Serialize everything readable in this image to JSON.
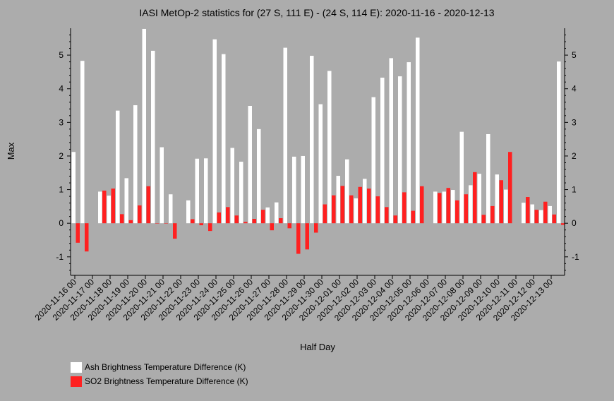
{
  "chart_data": {
    "type": "bar",
    "title": "IASI MetOp-2 statistics for (27 S, 111 E) - (24 S, 114 E): 2020-11-16 - 2020-12-13",
    "xlabel": "Half Day",
    "ylabel": "Max",
    "ylim": [
      -1.55,
      5.8
    ],
    "yticks": [
      -1,
      0,
      1,
      2,
      3,
      4,
      5
    ],
    "x_tick_labels": [
      "2020-11-16 00",
      "2020-11-17 00",
      "2020-11-18 00",
      "2020-11-19 00",
      "2020-11-20 00",
      "2020-11-21 00",
      "2020-11-22 00",
      "2020-11-23 00",
      "2020-11-24 00",
      "2020-11-25 00",
      "2020-11-26 00",
      "2020-11-27 00",
      "2020-11-28 00",
      "2020-11-29 00",
      "2020-11-30 00",
      "2020-12-01 00",
      "2020-12-02 00",
      "2020-12-03 00",
      "2020-12-04 00",
      "2020-12-05 00",
      "2020-12-06 00",
      "2020-12-07 00",
      "2020-12-08 00",
      "2020-12-09 00",
      "2020-12-10 00",
      "2020-12-11 00",
      "2020-12-12 00",
      "2020-12-13 00"
    ],
    "grid": false,
    "legend_position": "bottom-left",
    "series": [
      {
        "name": "Ash Brightness Temperature Difference (K)",
        "color": "#ffffff",
        "values": [
          2.12,
          4.83,
          null,
          0.94,
          0.82,
          3.35,
          1.34,
          3.51,
          5.78,
          5.13,
          2.26,
          0.86,
          null,
          0.68,
          1.92,
          1.93,
          5.47,
          5.03,
          2.24,
          1.83,
          3.49,
          2.8,
          0.47,
          0.62,
          5.22,
          1.98,
          2.0,
          4.98,
          3.54,
          4.53,
          1.41,
          1.9,
          0.74,
          1.32,
          3.75,
          4.33,
          4.91,
          4.37,
          4.79,
          5.52,
          null,
          0.94,
          0.94,
          0.99,
          2.72,
          1.13,
          1.47,
          2.65,
          1.45,
          1.0,
          null,
          0.61,
          0.56,
          0.39,
          0.51,
          4.81
        ]
      },
      {
        "name": "SO2 Brightness Temperature Difference (K)",
        "color": "#ff2020",
        "values": [
          -0.58,
          -0.84,
          null,
          0.97,
          1.03,
          0.27,
          0.09,
          0.53,
          1.1,
          -0.01,
          -0.01,
          -0.46,
          null,
          0.12,
          -0.06,
          -0.23,
          0.32,
          0.48,
          0.23,
          0.04,
          0.13,
          0.4,
          -0.21,
          0.15,
          -0.15,
          -0.91,
          -0.78,
          -0.28,
          0.56,
          0.83,
          1.11,
          0.83,
          1.08,
          1.03,
          0.8,
          0.48,
          0.23,
          0.92,
          0.37,
          1.1,
          null,
          0.9,
          1.05,
          0.68,
          0.86,
          1.52,
          0.25,
          0.51,
          1.28,
          2.12,
          null,
          0.78,
          0.4,
          0.64,
          0.26,
          -0.05
        ]
      }
    ]
  }
}
